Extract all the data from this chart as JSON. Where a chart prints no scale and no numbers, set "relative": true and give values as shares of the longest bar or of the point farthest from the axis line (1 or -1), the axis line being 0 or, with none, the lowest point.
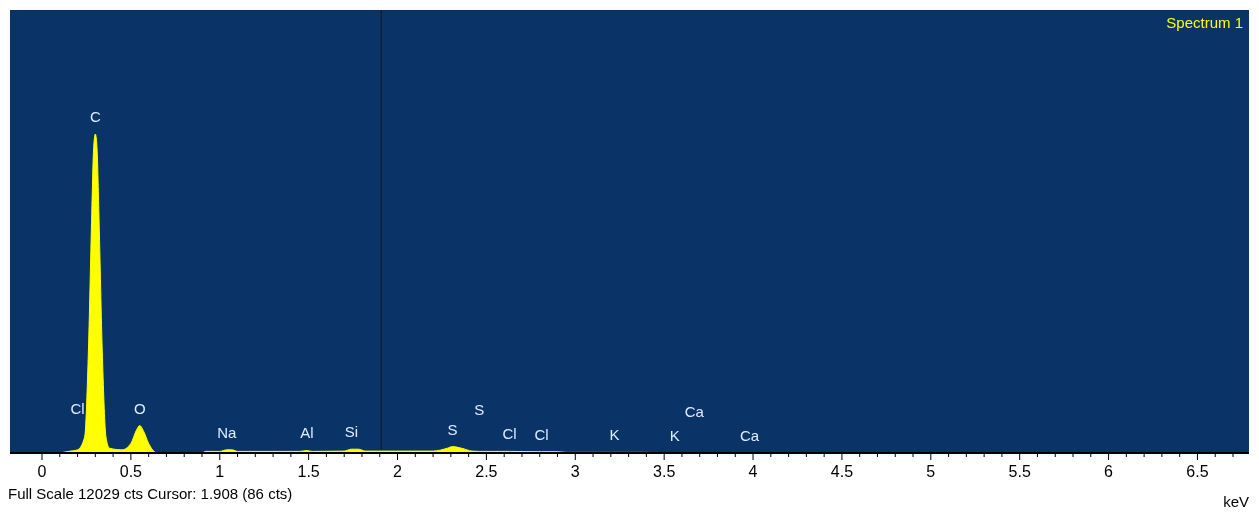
{
  "chart_data": {
    "type": "area",
    "relative": true,
    "xlabel": "keV",
    "legend": "top right",
    "grid": false,
    "marker": "none",
    "xlim": [
      -0.18,
      6.79
    ],
    "xticks": [
      0,
      {
        "value": 0.1,
        "label": null
      },
      {
        "value": 0.2,
        "label": null
      },
      {
        "value": 0.3,
        "label": null
      },
      {
        "value": 0.4,
        "label": null
      },
      0.5,
      {
        "value": 0.6,
        "label": null
      },
      {
        "value": 0.7,
        "label": null
      },
      {
        "value": 0.8,
        "label": null
      },
      {
        "value": 0.9,
        "label": null
      },
      1,
      {
        "value": 1.1,
        "label": null
      },
      {
        "value": 1.2,
        "label": null
      },
      {
        "value": 1.3,
        "label": null
      },
      {
        "value": 1.4,
        "label": null
      },
      1.5,
      {
        "value": 1.6,
        "label": null
      },
      {
        "value": 1.7,
        "label": null
      },
      {
        "value": 1.8,
        "label": null
      },
      {
        "value": 1.9,
        "label": null
      },
      2,
      {
        "value": 2.1,
        "label": null
      },
      {
        "value": 2.2,
        "label": null
      },
      {
        "value": 2.3,
        "label": null
      },
      {
        "value": 2.4,
        "label": null
      },
      2.5,
      {
        "value": 2.6,
        "label": null
      },
      {
        "value": 2.7,
        "label": null
      },
      {
        "value": 2.8,
        "label": null
      },
      {
        "value": 2.9,
        "label": null
      },
      3,
      {
        "value": 3.1,
        "label": null
      },
      {
        "value": 3.2,
        "label": null
      },
      {
        "value": 3.3,
        "label": null
      },
      {
        "value": 3.4,
        "label": null
      },
      3.5,
      {
        "value": 3.6,
        "label": null
      },
      {
        "value": 3.7,
        "label": null
      },
      {
        "value": 3.8,
        "label": null
      },
      {
        "value": 3.9,
        "label": null
      },
      4,
      {
        "value": 4.1,
        "label": null
      },
      {
        "value": 4.2,
        "label": null
      },
      {
        "value": 4.3,
        "label": null
      },
      {
        "value": 4.4,
        "label": null
      },
      4.5,
      {
        "value": 4.6,
        "label": null
      },
      {
        "value": 4.7,
        "label": null
      },
      {
        "value": 4.8,
        "label": null
      },
      {
        "value": 4.9,
        "label": null
      },
      5,
      {
        "value": 5.1,
        "label": null
      },
      {
        "value": 5.2,
        "label": null
      },
      {
        "value": 5.3,
        "label": null
      },
      {
        "value": 5.4,
        "label": null
      },
      5.5,
      {
        "value": 5.6,
        "label": null
      },
      {
        "value": 5.7,
        "label": null
      },
      {
        "value": 5.8,
        "label": null
      },
      {
        "value": 5.9,
        "label": null
      },
      6,
      {
        "value": 6.1,
        "label": null
      },
      {
        "value": 6.2,
        "label": null
      },
      {
        "value": 6.3,
        "label": null
      },
      {
        "value": 6.4,
        "label": null
      },
      6.5,
      {
        "value": 6.6,
        "label": null
      },
      {
        "value": 6.7,
        "label": null
      }
    ],
    "series": [
      {
        "name": "Spectrum 1",
        "color": "#ffff00",
        "x": [
          0.1,
          0.15,
          0.2,
          0.24,
          0.26,
          0.28,
          0.29,
          0.3,
          0.31,
          0.32,
          0.34,
          0.36,
          0.38,
          0.45,
          0.5,
          0.53,
          0.55,
          0.57,
          0.6,
          0.63,
          0.65,
          0.9,
          0.92,
          1.0,
          1.04,
          1.07,
          1.1,
          1.45,
          1.49,
          1.52,
          1.7,
          1.74,
          1.78,
          1.82,
          2.2,
          2.28,
          2.31,
          2.36,
          2.42,
          2.46,
          2.63,
          2.81,
          2.9,
          2.95,
          3.22,
          3.3,
          3.4,
          3.45,
          3.56,
          3.67,
          3.98,
          4.05
        ],
        "values": [
          0,
          0.005,
          0.01,
          0.05,
          0.3,
          0.75,
          0.95,
          1,
          0.95,
          0.75,
          0.3,
          0.05,
          0.015,
          0.01,
          0.03,
          0.07,
          0.086,
          0.07,
          0.03,
          0.005,
          0,
          0,
          0.005,
          0.005,
          0.01,
          0.01,
          0.005,
          0.005,
          0.008,
          0.005,
          0.006,
          0.012,
          0.012,
          0.006,
          0.006,
          0.015,
          0.02,
          0.015,
          0.006,
          0.005,
          0.005,
          0.004,
          0.004,
          0.002,
          0.002,
          0.002,
          0.002,
          0.001,
          0.001,
          0.001,
          0.001,
          0
        ]
      }
    ],
    "ref_lines": [
      {
        "axis": "x",
        "value": 1.908,
        "color": "#101c30"
      }
    ],
    "annotations": [
      {
        "text": "C",
        "x": 0.3,
        "y": 1
      },
      {
        "text": "Cl",
        "x": 0.2,
        "y": 0.01
      },
      {
        "text": "O",
        "x": 0.55,
        "y": 0.086
      },
      {
        "text": "Na",
        "x": 1.04,
        "y": 0.01
      },
      {
        "text": "Al",
        "x": 1.49,
        "y": 0.008
      },
      {
        "text": "Si",
        "x": 1.74,
        "y": 0.012
      },
      {
        "text": "S",
        "x": 2.31,
        "y": 0.02
      },
      {
        "text": "S",
        "x": 2.46,
        "y": 0.005
      },
      {
        "text": "Cl",
        "x": 2.63,
        "y": 0.005
      },
      {
        "text": "Cl",
        "x": 2.81,
        "y": 0.004
      },
      {
        "text": "K",
        "x": 3.22,
        "y": 0.002
      },
      {
        "text": "K",
        "x": 3.56,
        "y": 0.001
      },
      {
        "text": "Ca",
        "x": 3.67,
        "y": 0.001
      },
      {
        "text": "Ca",
        "x": 3.98,
        "y": 0.001
      },
      "Full Scale 12029 cts Cursor: 1.908  (86 cts)"
    ]
  }
}
